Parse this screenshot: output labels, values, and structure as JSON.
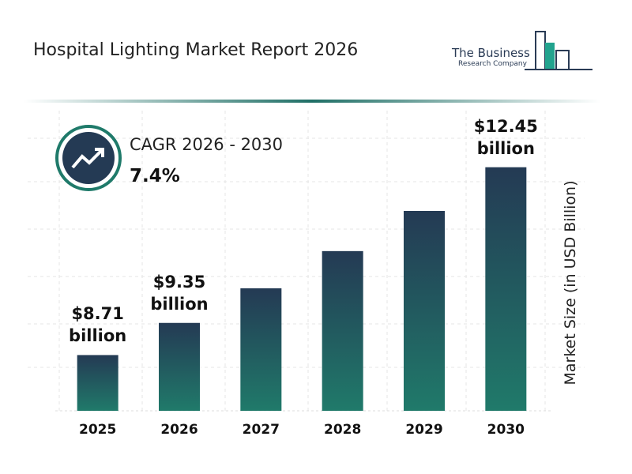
{
  "logo": {
    "name": "The Business",
    "subtitle": "Research Company"
  },
  "chart_data": {
    "type": "bar",
    "title": "Hospital Lighting Market Report 2026",
    "cagr_label": "CAGR 2026 - 2030",
    "cagr_value": "7.4%",
    "y_label": "Market Size (in USD Billion)",
    "categories": [
      "2025",
      "2026",
      "2027",
      "2028",
      "2029",
      "2030"
    ],
    "values": [
      8.71,
      9.35,
      10.04,
      10.78,
      11.58,
      12.45
    ],
    "value_labels": [
      "$8.71 billion",
      "$9.35 billion",
      null,
      null,
      null,
      "$12.45 billion"
    ],
    "ylim": [
      7.6,
      13.2
    ]
  }
}
